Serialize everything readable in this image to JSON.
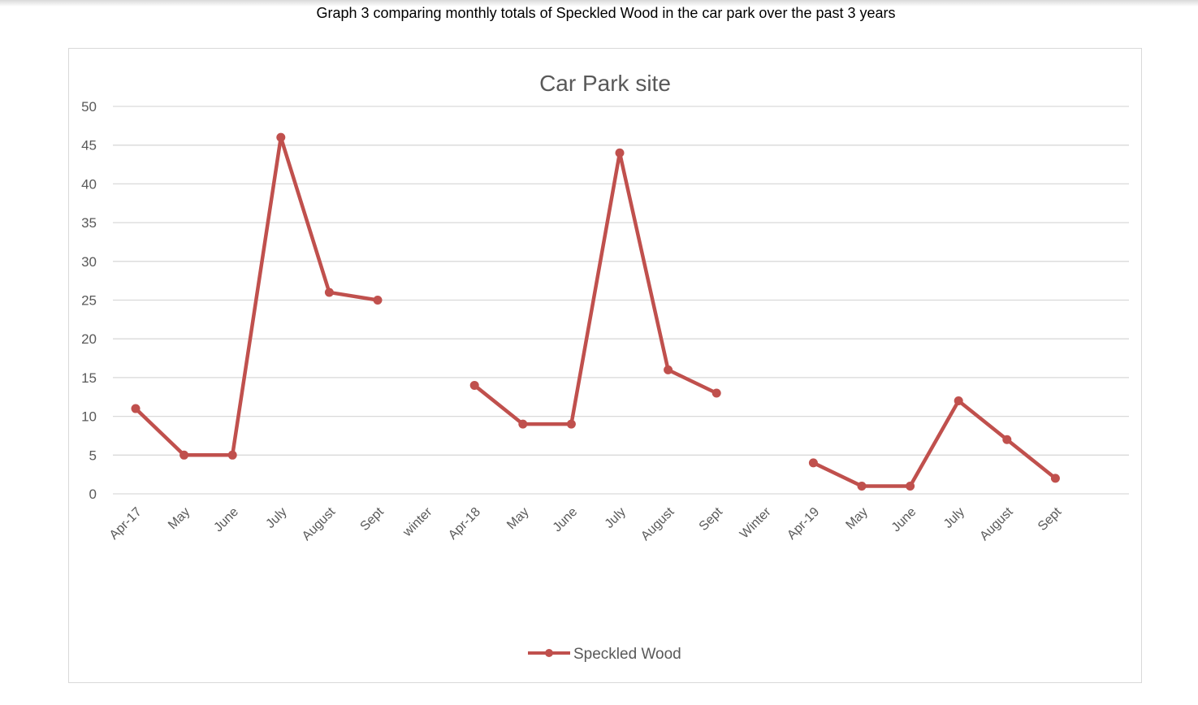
{
  "caption": "Graph 3 comparing monthly totals of Speckled Wood in the car park over the past 3 years",
  "colors": {
    "series": "#c0504d",
    "grid": "#d9d9d9",
    "text": "#595959"
  },
  "chart_data": {
    "type": "line",
    "title": "Car Park site",
    "xlabel": "",
    "ylabel": "",
    "ylim": [
      0,
      50
    ],
    "yticks": [
      0,
      5,
      10,
      15,
      20,
      25,
      30,
      35,
      40,
      45,
      50
    ],
    "grid": true,
    "legend_position": "bottom",
    "categories": [
      "Apr-17",
      "May",
      "June",
      "July",
      "August",
      "Sept",
      "winter",
      "Apr-18",
      "May",
      "June",
      "July",
      "August",
      "Sept",
      "Winter",
      "Apr-19",
      "May",
      "June",
      "July",
      "August",
      "Sept"
    ],
    "series": [
      {
        "name": "Speckled Wood",
        "values": [
          11,
          5,
          5,
          46,
          26,
          25,
          null,
          14,
          9,
          9,
          44,
          16,
          13,
          null,
          4,
          1,
          1,
          12,
          7,
          2
        ]
      }
    ]
  }
}
